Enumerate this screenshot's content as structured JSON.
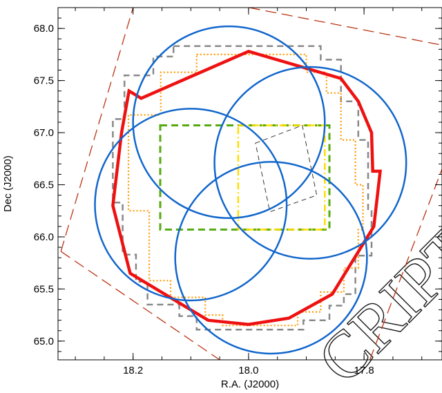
{
  "chart_data": {
    "type": "sky-footprint",
    "xlabel": "R.A. (J2000)",
    "ylabel": "Dec (J2000)",
    "xlim": [
      18.33,
      17.665
    ],
    "ylim": [
      64.82,
      68.2
    ],
    "x_ticks": [
      {
        "value": 18.2,
        "label": "18.2"
      },
      {
        "value": 18.0,
        "label": "18.0"
      },
      {
        "value": 17.8,
        "label": "17.8"
      }
    ],
    "y_ticks": [
      {
        "value": 65.0,
        "label": "65.0"
      },
      {
        "value": 65.5,
        "label": "65.5"
      },
      {
        "value": 66.0,
        "label": "66.0"
      },
      {
        "value": 66.5,
        "label": "66.5"
      },
      {
        "value": 67.0,
        "label": "67.0"
      },
      {
        "value": 67.5,
        "label": "67.5"
      },
      {
        "value": 68.0,
        "label": "68.0"
      }
    ],
    "minor_x_step": 0.05,
    "minor_y_step": 0.1,
    "grid": false,
    "circles": [
      {
        "ra": 18.034,
        "dec": 67.1,
        "radius_deg": 0.92,
        "color": "#1166cc"
      },
      {
        "ra": 18.1,
        "dec": 66.31,
        "radius_deg": 0.92,
        "color": "#1166cc"
      },
      {
        "ra": 17.893,
        "dec": 66.71,
        "radius_deg": 0.92,
        "color": "#1166cc"
      },
      {
        "ra": 17.961,
        "dec": 65.8,
        "radius_deg": 0.92,
        "color": "#1166cc"
      }
    ],
    "polygons": [
      {
        "color": "#ee1111",
        "style": "solid-thick",
        "points": [
          [
            18.207,
            67.4
          ],
          [
            18.186,
            67.33
          ],
          [
            18.0,
            67.78
          ],
          [
            17.84,
            67.52
          ],
          [
            17.81,
            67.3
          ],
          [
            17.787,
            67.0
          ],
          [
            17.785,
            66.63
          ],
          [
            17.772,
            66.63
          ],
          [
            17.783,
            66.1
          ],
          [
            17.855,
            65.45
          ],
          [
            17.93,
            65.22
          ],
          [
            18.0,
            65.16
          ],
          [
            18.07,
            65.2
          ],
          [
            18.205,
            65.65
          ],
          [
            18.235,
            66.3
          ],
          [
            18.22,
            67.0
          ]
        ]
      },
      {
        "color": "#888888",
        "style": "dashed",
        "points": [
          [
            18.13,
            67.83
          ],
          [
            17.875,
            67.83
          ],
          [
            17.875,
            67.7
          ],
          [
            17.84,
            67.7
          ],
          [
            17.84,
            67.3
          ],
          [
            17.81,
            67.3
          ],
          [
            17.81,
            66.93
          ],
          [
            17.793,
            66.93
          ],
          [
            17.793,
            66.25
          ],
          [
            17.787,
            66.25
          ],
          [
            17.787,
            65.82
          ],
          [
            17.815,
            65.82
          ],
          [
            17.815,
            65.45
          ],
          [
            17.835,
            65.45
          ],
          [
            17.835,
            65.34
          ],
          [
            17.86,
            65.34
          ],
          [
            17.86,
            65.2
          ],
          [
            17.905,
            65.2
          ],
          [
            17.905,
            65.11
          ],
          [
            18.09,
            65.11
          ],
          [
            18.09,
            65.24
          ],
          [
            18.12,
            65.24
          ],
          [
            18.12,
            65.35
          ],
          [
            18.175,
            65.35
          ],
          [
            18.175,
            65.57
          ],
          [
            18.195,
            65.57
          ],
          [
            18.195,
            65.83
          ],
          [
            18.218,
            65.83
          ],
          [
            18.218,
            66.33
          ],
          [
            18.235,
            66.33
          ],
          [
            18.235,
            67.13
          ],
          [
            18.215,
            67.13
          ],
          [
            18.215,
            67.55
          ],
          [
            18.165,
            67.55
          ],
          [
            18.165,
            67.73
          ],
          [
            18.13,
            67.73
          ]
        ]
      },
      {
        "color": "#ff9900",
        "style": "dotted",
        "points": [
          [
            18.09,
            67.75
          ],
          [
            17.9,
            67.75
          ],
          [
            17.9,
            67.58
          ],
          [
            17.865,
            67.58
          ],
          [
            17.865,
            67.38
          ],
          [
            17.84,
            67.38
          ],
          [
            17.84,
            66.93
          ],
          [
            17.815,
            66.93
          ],
          [
            17.815,
            66.5
          ],
          [
            17.802,
            66.5
          ],
          [
            17.802,
            66.07
          ],
          [
            17.81,
            66.07
          ],
          [
            17.81,
            65.7
          ],
          [
            17.835,
            65.7
          ],
          [
            17.835,
            65.47
          ],
          [
            17.875,
            65.47
          ],
          [
            17.875,
            65.28
          ],
          [
            17.915,
            65.28
          ],
          [
            17.915,
            65.15
          ],
          [
            18.045,
            65.15
          ],
          [
            18.045,
            65.25
          ],
          [
            18.075,
            65.25
          ],
          [
            18.075,
            65.42
          ],
          [
            18.135,
            65.42
          ],
          [
            18.135,
            65.58
          ],
          [
            18.172,
            65.58
          ],
          [
            18.172,
            66.25
          ],
          [
            18.208,
            66.25
          ],
          [
            18.208,
            67.17
          ],
          [
            18.152,
            67.17
          ],
          [
            18.152,
            67.58
          ],
          [
            18.09,
            67.58
          ]
        ]
      },
      {
        "color": "#55aa11",
        "style": "dashed-thick",
        "points": [
          [
            18.153,
            67.07
          ],
          [
            17.86,
            67.07
          ],
          [
            17.86,
            66.07
          ],
          [
            18.153,
            66.07
          ]
        ]
      },
      {
        "color": "#ffdd00",
        "style": "dashdot",
        "points": [
          [
            18.018,
            67.07
          ],
          [
            17.868,
            67.07
          ],
          [
            17.868,
            66.07
          ],
          [
            18.018,
            66.07
          ]
        ]
      },
      {
        "color": "#333333",
        "style": "dashed-thin",
        "points": [
          [
            17.988,
            66.9
          ],
          [
            17.907,
            67.07
          ],
          [
            17.882,
            66.4
          ],
          [
            17.963,
            66.24
          ]
        ]
      }
    ],
    "bounding_lines": {
      "color": "#bb3311",
      "style": "long-dash",
      "segments": [
        [
          [
            18.325,
            65.86
          ],
          [
            18.2,
            68.2
          ]
        ],
        [
          [
            18.325,
            65.86
          ],
          [
            18.05,
            64.82
          ]
        ],
        [
          [
            17.999,
            68.2
          ],
          [
            17.665,
            67.84
          ]
        ],
        [
          [
            17.79,
            64.82
          ],
          [
            17.665,
            66.65
          ]
        ]
      ]
    }
  },
  "watermark": "CRIPT"
}
